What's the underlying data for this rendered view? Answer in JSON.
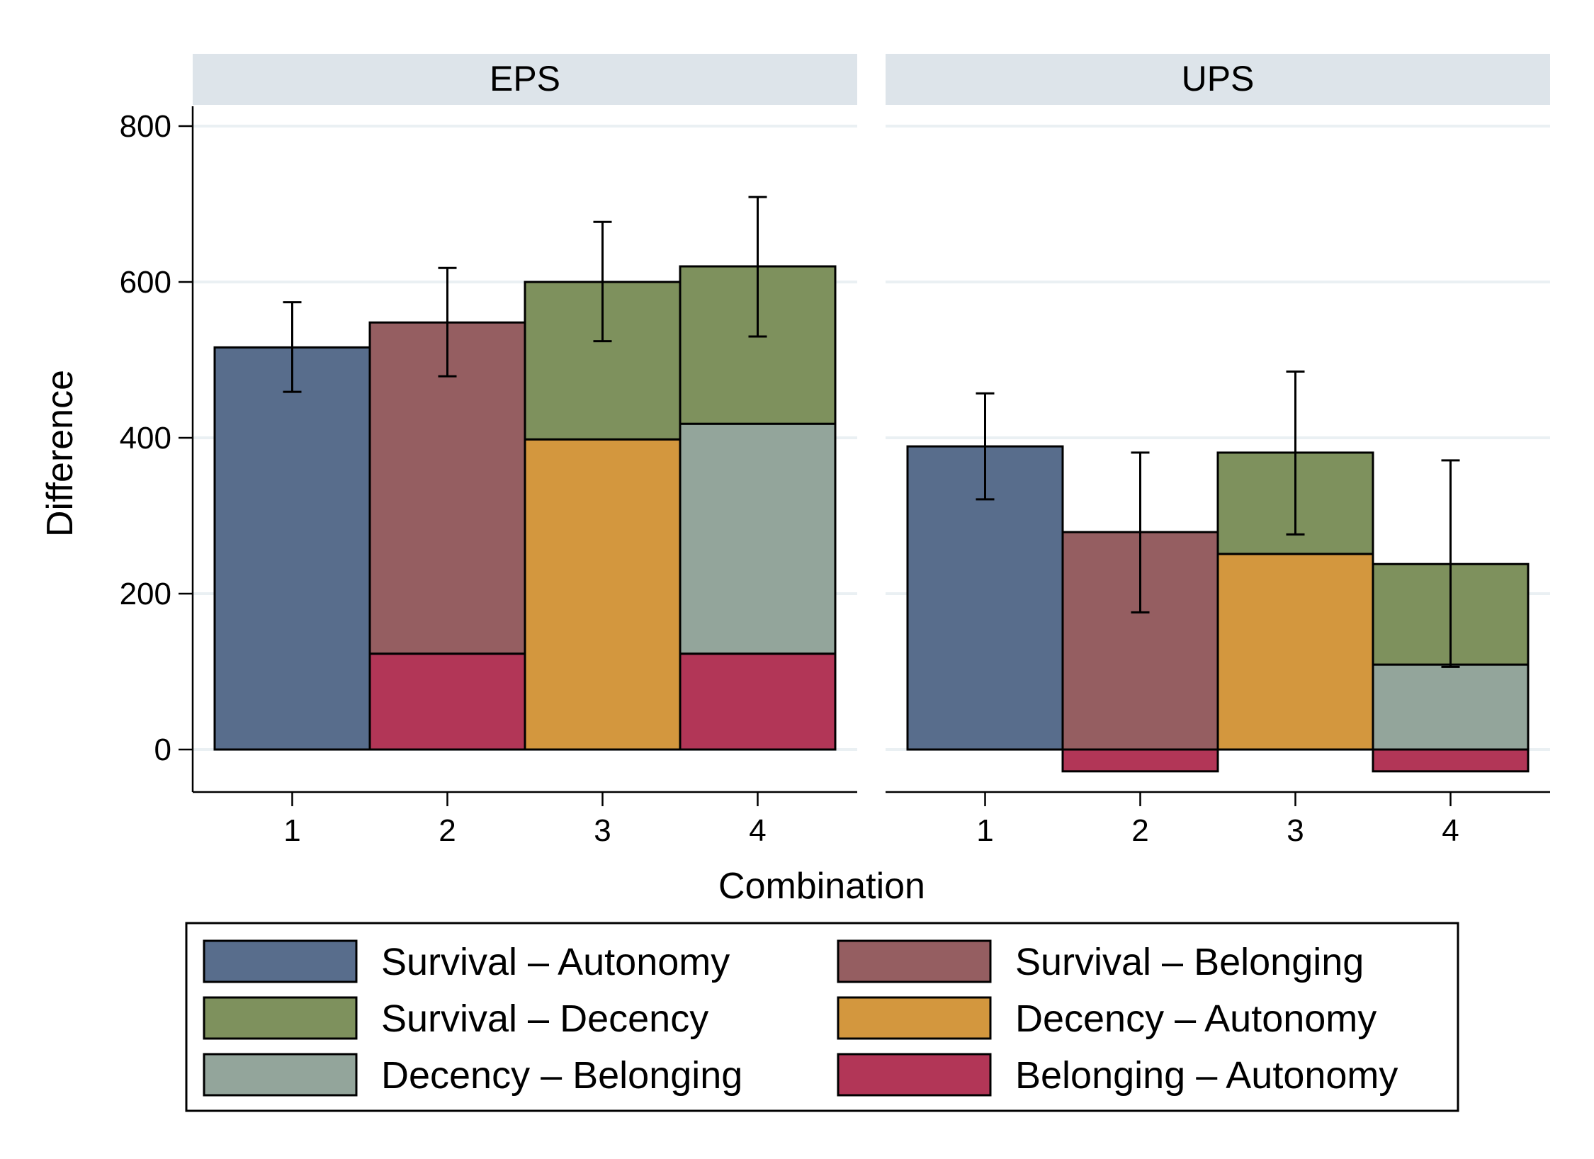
{
  "chart_data": {
    "type": "bar",
    "subtype": "stacked-bar-faceted",
    "xlabel": "Combination",
    "ylabel": "Difference",
    "ylim": [
      -55,
      800
    ],
    "yticks": [
      0,
      200,
      400,
      600,
      800
    ],
    "grid": true,
    "legend_position": "bottom",
    "categories": [
      "1",
      "2",
      "3",
      "4"
    ],
    "series": [
      {
        "name": "Survival – Autonomy",
        "color": "#586d8c"
      },
      {
        "name": "Survival – Belonging",
        "color": "#955e61"
      },
      {
        "name": "Survival – Decency",
        "color": "#7e915d"
      },
      {
        "name": "Decency – Autonomy",
        "color": "#d3973e"
      },
      {
        "name": "Decency – Belonging",
        "color": "#93a59b"
      },
      {
        "name": "Belonging – Autonomy",
        "color": "#b23657"
      }
    ],
    "panels": [
      {
        "title": "EPS",
        "bars": [
          {
            "category": "1",
            "segments": [
              {
                "series": 0,
                "from": 0,
                "to": 516
              }
            ],
            "ci": [
              459,
              574
            ]
          },
          {
            "category": "2",
            "segments": [
              {
                "series": 5,
                "from": 0,
                "to": 123
              },
              {
                "series": 1,
                "from": 123,
                "to": 548
              }
            ],
            "ci": [
              479,
              618
            ]
          },
          {
            "category": "3",
            "segments": [
              {
                "series": 3,
                "from": 0,
                "to": 398
              },
              {
                "series": 2,
                "from": 398,
                "to": 600
              }
            ],
            "ci": [
              524,
              677
            ]
          },
          {
            "category": "4",
            "segments": [
              {
                "series": 5,
                "from": 0,
                "to": 123
              },
              {
                "series": 4,
                "from": 123,
                "to": 418
              },
              {
                "series": 2,
                "from": 418,
                "to": 620
              }
            ],
            "ci": [
              530,
              709
            ]
          }
        ]
      },
      {
        "title": "UPS",
        "bars": [
          {
            "category": "1",
            "segments": [
              {
                "series": 0,
                "from": 0,
                "to": 389
              }
            ],
            "ci": [
              321,
              457
            ]
          },
          {
            "category": "2",
            "segments": [
              {
                "series": 5,
                "from": -28,
                "to": 0
              },
              {
                "series": 1,
                "from": 0,
                "to": 279
              }
            ],
            "ci": [
              176,
              381
            ]
          },
          {
            "category": "3",
            "segments": [
              {
                "series": 3,
                "from": 0,
                "to": 251
              },
              {
                "series": 2,
                "from": 251,
                "to": 381
              }
            ],
            "ci": [
              276,
              485
            ]
          },
          {
            "category": "4",
            "segments": [
              {
                "series": 5,
                "from": -28,
                "to": 0
              },
              {
                "series": 4,
                "from": 0,
                "to": 109
              },
              {
                "series": 2,
                "from": 109,
                "to": 238
              }
            ],
            "ci": [
              106,
              371
            ]
          }
        ]
      }
    ]
  }
}
